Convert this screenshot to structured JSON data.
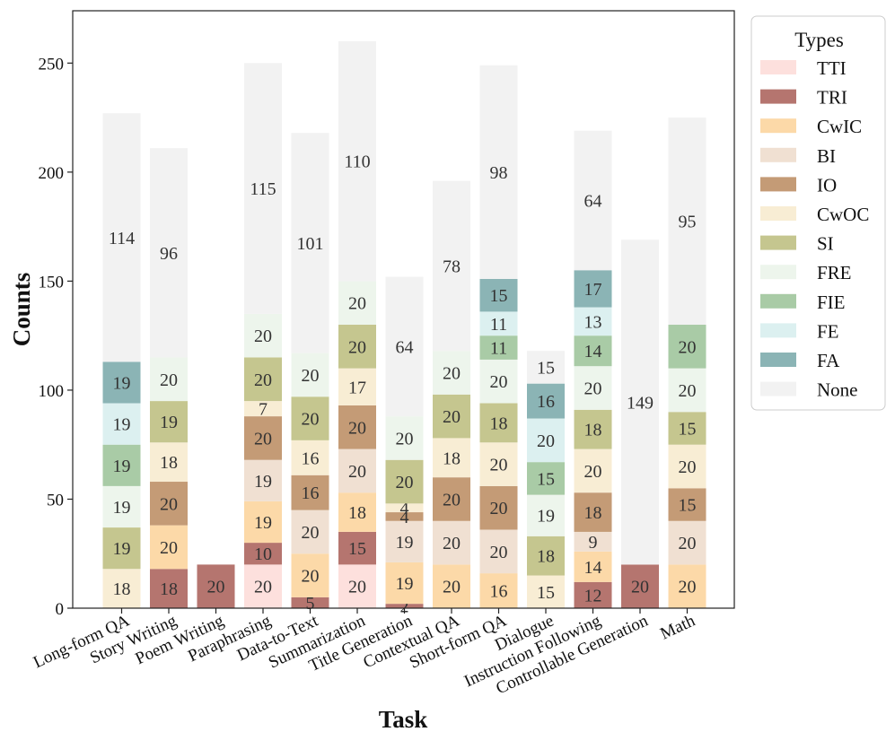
{
  "chart_data": {
    "type": "bar",
    "stacked": true,
    "xlabel": "Task",
    "ylabel": "Counts",
    "ylim": [
      0,
      274
    ],
    "yticks": [
      0,
      50,
      100,
      150,
      200,
      250
    ],
    "legend_title": "Types",
    "legend_position": "outside-right-top",
    "categories": [
      "Long-form QA",
      "Story Writing",
      "Poem Writing",
      "Paraphrasing",
      "Data-to-Text",
      "Summarization",
      "Title Generation",
      "Contextual QA",
      "Short-form QA",
      "Dialogue",
      "Instruction Following",
      "Controllable Generation",
      "Math"
    ],
    "series": [
      {
        "name": "TTI",
        "color": "#fde0dd",
        "values": [
          0,
          0,
          0,
          20,
          0,
          20,
          0,
          0,
          0,
          0,
          0,
          0,
          0
        ]
      },
      {
        "name": "TRI",
        "color": "#b5756f",
        "values": [
          0,
          18,
          20,
          10,
          5,
          15,
          2,
          0,
          0,
          0,
          12,
          20,
          0
        ]
      },
      {
        "name": "CwIC",
        "color": "#fcd9a8",
        "values": [
          0,
          20,
          0,
          19,
          20,
          18,
          19,
          20,
          16,
          0,
          14,
          0,
          20
        ]
      },
      {
        "name": "BI",
        "color": "#f0e0d2",
        "values": [
          0,
          0,
          0,
          19,
          20,
          20,
          19,
          20,
          20,
          0,
          9,
          0,
          20
        ]
      },
      {
        "name": "IO",
        "color": "#c49b76",
        "values": [
          0,
          20,
          0,
          20,
          16,
          20,
          4,
          20,
          20,
          0,
          18,
          0,
          15
        ]
      },
      {
        "name": "CwOC",
        "color": "#f8edd4",
        "values": [
          18,
          18,
          0,
          7,
          16,
          17,
          4,
          18,
          20,
          15,
          20,
          0,
          20
        ]
      },
      {
        "name": "SI",
        "color": "#c5c68f",
        "values": [
          19,
          19,
          0,
          20,
          20,
          20,
          20,
          20,
          18,
          18,
          18,
          0,
          15
        ]
      },
      {
        "name": "FRE",
        "color": "#edf5ec",
        "values": [
          19,
          20,
          0,
          20,
          20,
          20,
          20,
          20,
          20,
          19,
          20,
          0,
          20
        ]
      },
      {
        "name": "FIE",
        "color": "#a9cba6",
        "values": [
          19,
          0,
          0,
          0,
          0,
          0,
          0,
          0,
          11,
          15,
          14,
          0,
          20
        ]
      },
      {
        "name": "FE",
        "color": "#dcf0f0",
        "values": [
          19,
          0,
          0,
          0,
          0,
          0,
          0,
          0,
          11,
          20,
          13,
          0,
          0
        ]
      },
      {
        "name": "FA",
        "color": "#8bb4b5",
        "values": [
          19,
          0,
          0,
          0,
          0,
          0,
          0,
          0,
          15,
          16,
          17,
          0,
          0
        ]
      },
      {
        "name": "None",
        "color": "#f2f2f2",
        "values": [
          114,
          96,
          0,
          115,
          101,
          110,
          64,
          78,
          98,
          15,
          64,
          149,
          95
        ]
      }
    ]
  }
}
